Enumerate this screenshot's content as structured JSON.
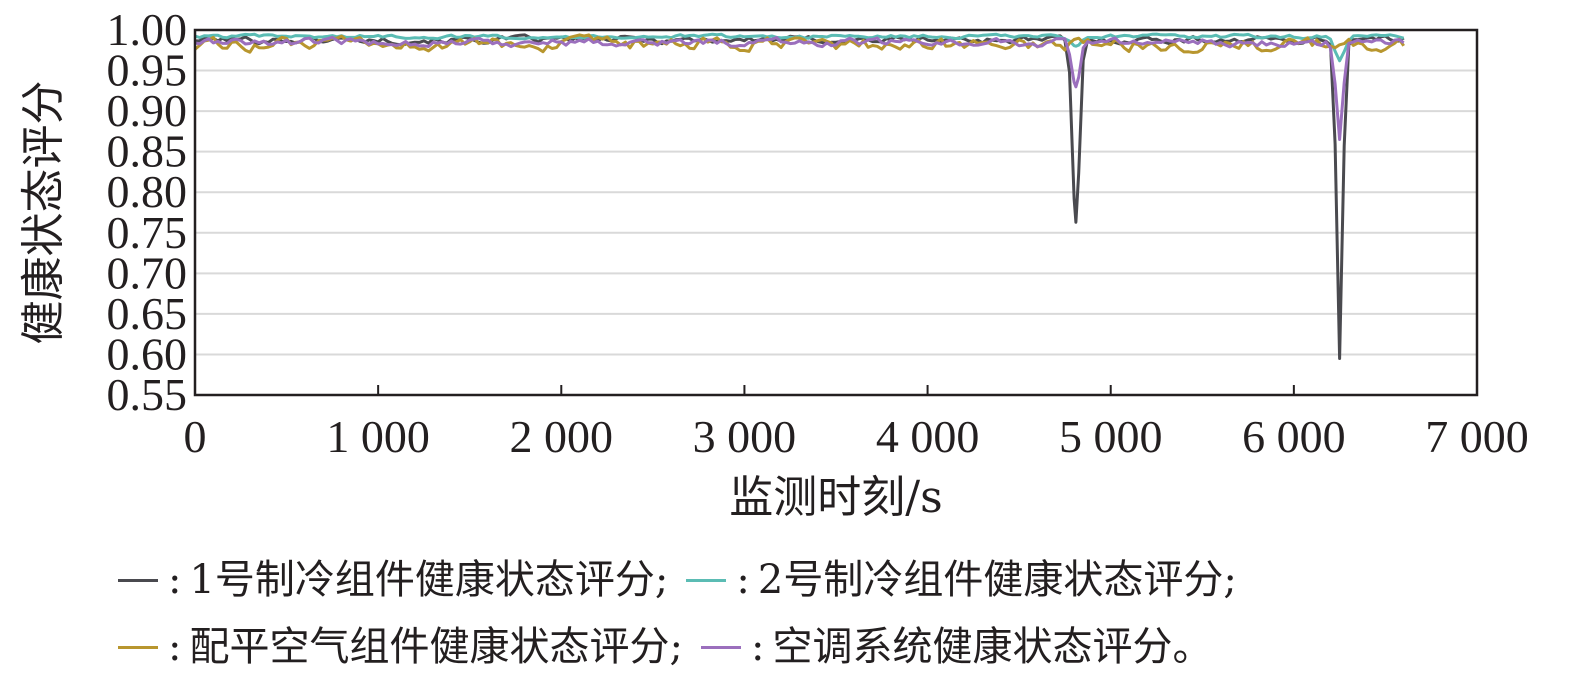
{
  "chart_data": {
    "type": "line",
    "xlabel": "监测时刻/s",
    "ylabel": "健康状态评分",
    "xlim": [
      0,
      7000
    ],
    "ylim": [
      0.55,
      1.0
    ],
    "x_ticks": [
      "0",
      "1 000",
      "2 000",
      "3 000",
      "4 000",
      "5 000",
      "6 000",
      "7 000"
    ],
    "y_ticks": [
      "0.55",
      "0.60",
      "0.65",
      "0.70",
      "0.75",
      "0.80",
      "0.85",
      "0.90",
      "0.95",
      "1.00"
    ],
    "grid": "horizontal",
    "legend_position": "bottom",
    "series": [
      {
        "name": "1号制冷组件健康状态评分",
        "color": "#4a4a4f",
        "base": 0.988,
        "noise": 0.008,
        "dips": [
          {
            "x": 4810,
            "y": 0.763,
            "width": 40
          },
          {
            "x": 6250,
            "y": 0.595,
            "width": 35
          }
        ]
      },
      {
        "name": "2号制冷组件健康状态评分",
        "color": "#5bbcb4",
        "base": 0.992,
        "noise": 0.004,
        "dips": [
          {
            "x": 4810,
            "y": 0.98,
            "width": 60
          },
          {
            "x": 6250,
            "y": 0.962,
            "width": 55
          }
        ]
      },
      {
        "name": "配平空气组件健康状态评分",
        "color": "#b8962e",
        "base": 0.982,
        "noise": 0.014,
        "dips": []
      },
      {
        "name": "空调系统健康状态评分",
        "color": "#9b6fbd",
        "base": 0.985,
        "noise": 0.009,
        "dips": [
          {
            "x": 4810,
            "y": 0.93,
            "width": 45
          },
          {
            "x": 6250,
            "y": 0.865,
            "width": 40
          }
        ]
      }
    ],
    "x_end": 6600
  },
  "legend": {
    "separator": ":",
    "row1": [
      {
        "label": "1号制冷组件健康状态评分;",
        "color": "#4a4a4f"
      },
      {
        "label": "2号制冷组件健康状态评分;",
        "color": "#5bbcb4"
      }
    ],
    "row2": [
      {
        "label": "配平空气组件健康状态评分;",
        "color": "#b8962e"
      },
      {
        "label": "空调系统健康状态评分。",
        "color": "#9b6fbd"
      }
    ]
  }
}
